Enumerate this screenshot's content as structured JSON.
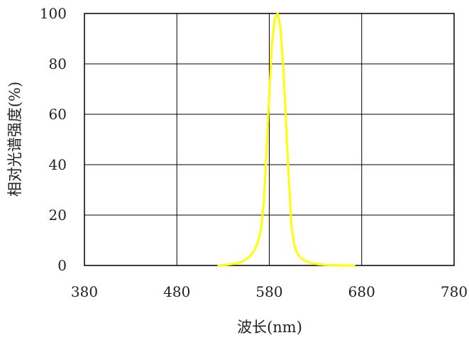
{
  "chart_data": {
    "type": "line",
    "title": "",
    "xlabel": "波长(nm)",
    "ylabel": "相对光谱强度(%)",
    "xlim": [
      380,
      780
    ],
    "ylim": [
      0,
      100
    ],
    "x_ticks": [
      380,
      480,
      580,
      680,
      780
    ],
    "y_ticks": [
      0,
      20,
      40,
      60,
      80,
      100
    ],
    "grid": true,
    "colors": {
      "series": "#ffff00",
      "grid": "#000000",
      "text": "#222222"
    },
    "series": [
      {
        "x": [
          525,
          535,
          545,
          552,
          558,
          563,
          567,
          571,
          574,
          577,
          580,
          583,
          586,
          589,
          592,
          595,
          598,
          601,
          604,
          607,
          610,
          614,
          618,
          624,
          632,
          642,
          652,
          662,
          672
        ],
        "y": [
          0,
          0.3,
          0.8,
          1.8,
          3.2,
          5.5,
          8.5,
          14,
          25,
          45,
          68,
          88,
          98,
          100,
          95,
          80,
          58,
          35,
          16,
          8,
          5,
          3,
          2,
          1,
          0.5,
          0.2,
          0.1,
          0,
          0
        ]
      }
    ]
  }
}
